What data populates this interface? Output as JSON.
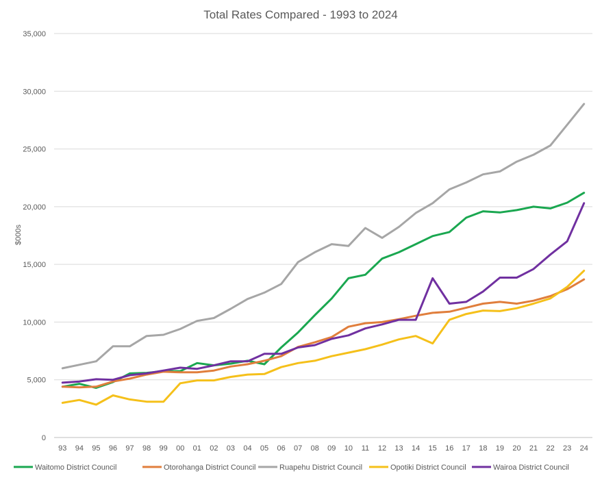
{
  "chart_data": {
    "type": "line",
    "title": "Total Rates Compared - 1993 to 2024",
    "ylabel": "$000s",
    "xlabel": "",
    "ylim": [
      0,
      35000
    ],
    "yticks": [
      0,
      5000,
      10000,
      15000,
      20000,
      25000,
      30000,
      35000
    ],
    "ytick_labels": [
      "0",
      "5,000",
      "10,000",
      "15,000",
      "20,000",
      "25,000",
      "30,000",
      "35,000"
    ],
    "categories": [
      "93",
      "94",
      "95",
      "96",
      "97",
      "98",
      "99",
      "00",
      "01",
      "02",
      "03",
      "04",
      "05",
      "06",
      "07",
      "08",
      "09",
      "10",
      "11",
      "12",
      "13",
      "14",
      "15",
      "16",
      "17",
      "18",
      "19",
      "20",
      "21",
      "22",
      "23",
      "24"
    ],
    "grid": "horizontal",
    "legend_position": "bottom",
    "series": [
      {
        "name": "Waitomo District Council",
        "color": "#1aa750",
        "values": [
          4400,
          4650,
          4300,
          4800,
          5550,
          5600,
          5750,
          5750,
          6450,
          6250,
          6400,
          6650,
          6350,
          7800,
          9100,
          10600,
          12050,
          13800,
          14100,
          15500,
          16050,
          16750,
          17450,
          17800,
          19050,
          19600,
          19500,
          19700,
          20000,
          19850,
          20350,
          21200
        ]
      },
      {
        "name": "Otorohanga District Council",
        "color": "#e07e3c",
        "values": [
          4400,
          4350,
          4400,
          4850,
          5100,
          5450,
          5700,
          5650,
          5650,
          5800,
          6150,
          6350,
          6650,
          7050,
          7850,
          8250,
          8700,
          9600,
          9900,
          10000,
          10250,
          10550,
          10800,
          10900,
          11250,
          11600,
          11750,
          11600,
          11850,
          12250,
          12850,
          13700
        ]
      },
      {
        "name": "Ruapehu District Council",
        "color": "#a6a6a6",
        "values": [
          6000,
          6300,
          6600,
          7900,
          7900,
          8800,
          8900,
          9400,
          10100,
          10350,
          11150,
          12000,
          12550,
          13300,
          15200,
          16050,
          16750,
          16600,
          18150,
          17300,
          18250,
          19450,
          20300,
          21500,
          22100,
          22800,
          23050,
          23900,
          24500,
          25300,
          27100,
          28900
        ]
      },
      {
        "name": "Opotiki District Council",
        "color": "#f5c01a",
        "values": [
          3000,
          3250,
          2850,
          3650,
          3300,
          3100,
          3100,
          4700,
          4950,
          4950,
          5250,
          5450,
          5500,
          6100,
          6450,
          6650,
          7050,
          7350,
          7650,
          8050,
          8500,
          8800,
          8150,
          10200,
          10700,
          11000,
          10950,
          11200,
          11600,
          12050,
          13050,
          14450
        ]
      },
      {
        "name": "Wairoa District Council",
        "color": "#7030a0",
        "values": [
          4750,
          4850,
          5050,
          5000,
          5400,
          5550,
          5800,
          6050,
          5950,
          6250,
          6600,
          6600,
          7250,
          7250,
          7800,
          8000,
          8550,
          8850,
          9450,
          9800,
          10200,
          10200,
          13800,
          11600,
          11750,
          12650,
          13850,
          13850,
          14600,
          15850,
          17000,
          20300
        ]
      }
    ]
  }
}
